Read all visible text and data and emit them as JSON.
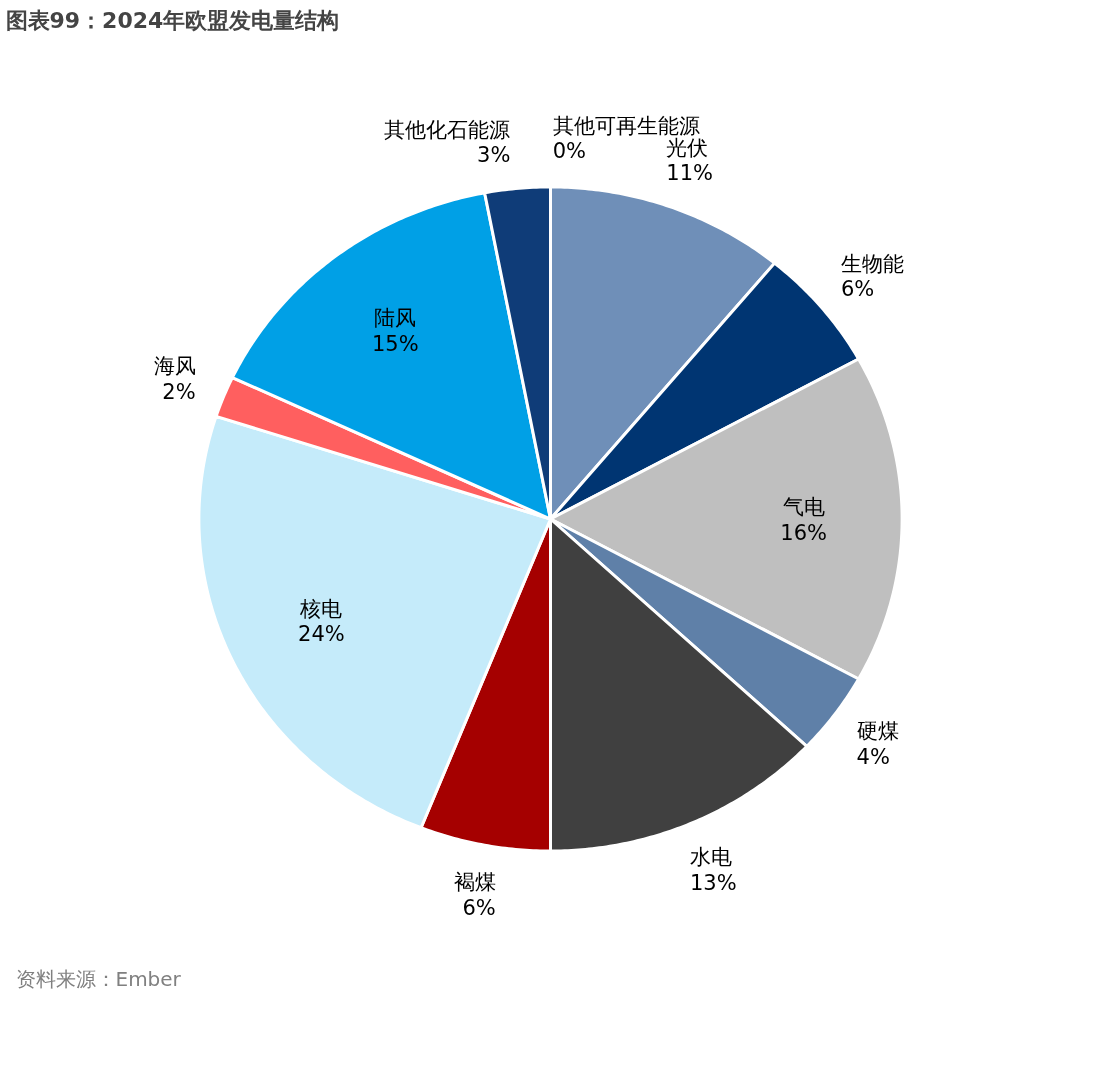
{
  "chart_data": {
    "type": "pie",
    "title": "图表99：2024年欧盟发电量结构",
    "categories": [
      "其他可再生能源",
      "光伏",
      "生物能",
      "气电",
      "硬煤",
      "水电",
      "褐煤",
      "核电",
      "海风",
      "陆风",
      "其他化石能源"
    ],
    "values": [
      0,
      11,
      6,
      16,
      4,
      13,
      6,
      24,
      2,
      15,
      3
    ],
    "value_labels": [
      "0%",
      "11%",
      "6%",
      "16%",
      "4%",
      "13%",
      "6%",
      "24%",
      "2%",
      "15%",
      "3%"
    ],
    "colors": [
      "#ffffff",
      "#6f8fb8",
      "#003572",
      "#bfbfbf",
      "#5f80a8",
      "#404040",
      "#a50000",
      "#c5ebfa",
      "#ff5f5f",
      "#00a0e6",
      "#0f3c78"
    ],
    "annotations": [
      "资料来源：Ember"
    ]
  }
}
